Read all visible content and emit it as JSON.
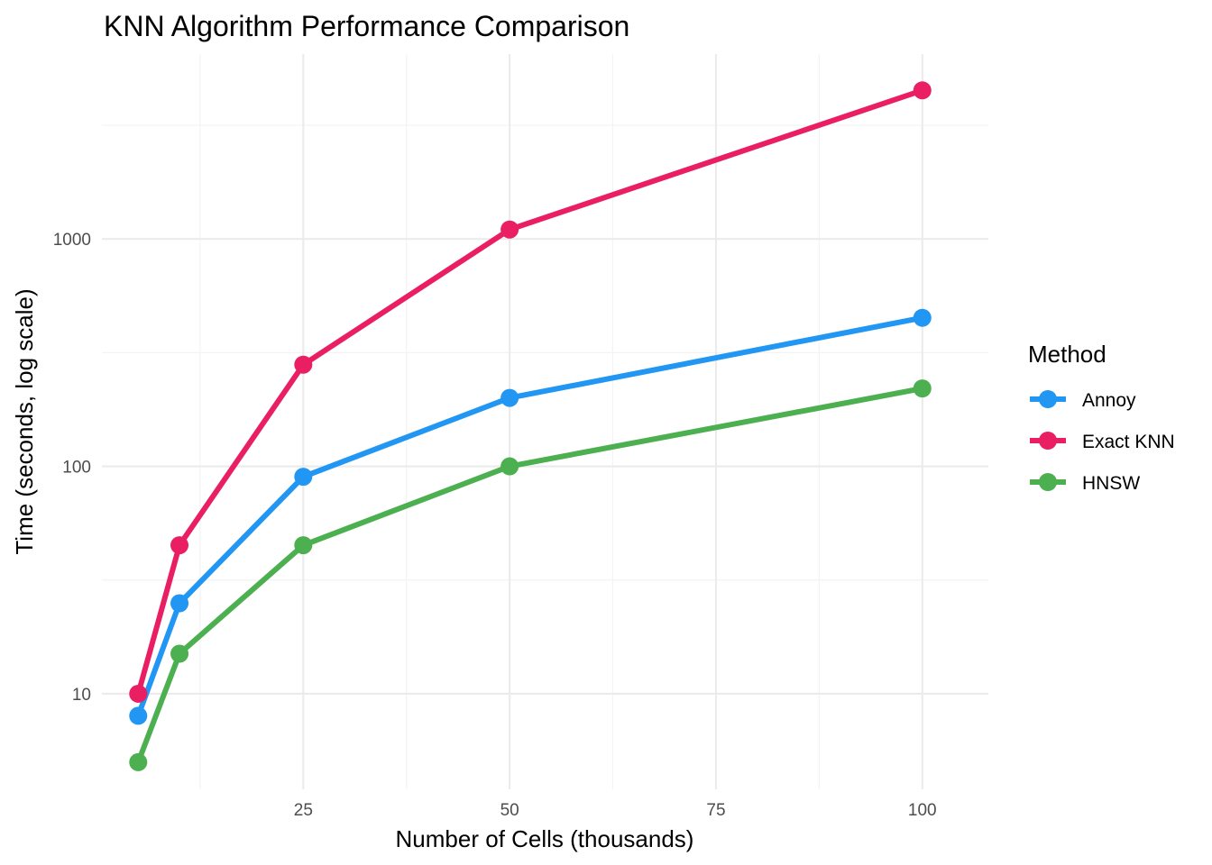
{
  "chart_data": {
    "type": "line",
    "title": "KNN Algorithm Performance Comparison",
    "xlabel": "Number of Cells (thousands)",
    "ylabel": "Time (seconds, log scale)",
    "y_scale": "log10",
    "x_ticks": [
      25,
      50,
      75,
      100
    ],
    "y_ticks": [
      10,
      100,
      1000
    ],
    "xlim": [
      0.6,
      108
    ],
    "ylim": [
      3.8,
      6500
    ],
    "grid": true,
    "legend": {
      "title": "Method",
      "placement": "right"
    },
    "x": [
      5,
      10,
      25,
      50,
      100
    ],
    "series": [
      {
        "name": "Annoy",
        "color": "#2196F3",
        "values": [
          8,
          25,
          90,
          200,
          450
        ]
      },
      {
        "name": "Exact KNN",
        "color": "#E91E63",
        "values": [
          10,
          45,
          280,
          1100,
          4500
        ]
      },
      {
        "name": "HNSW",
        "color": "#4CAF50",
        "values": [
          5,
          15,
          45,
          100,
          220
        ]
      }
    ]
  }
}
